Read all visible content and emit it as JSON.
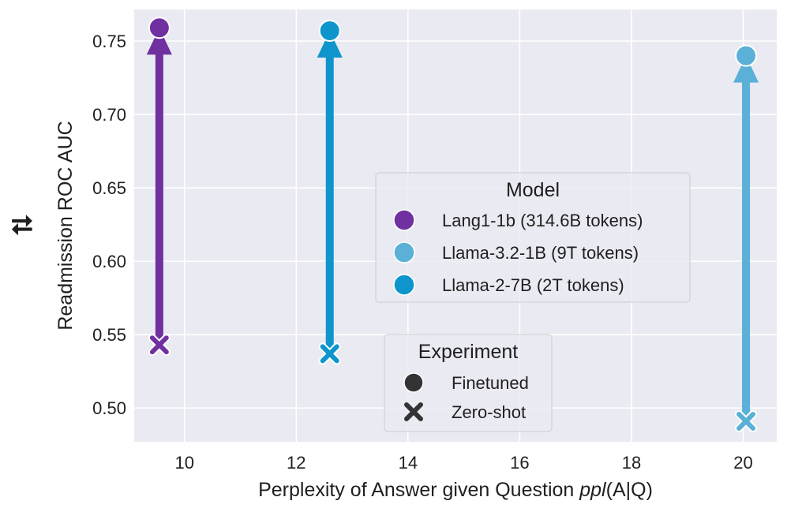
{
  "chart_data": {
    "type": "scatter",
    "title": "",
    "xlabel_prefix": "Perplexity of Answer given Question ",
    "xlabel_math": "ppl",
    "xlabel_math_args": "(A|Q)",
    "ylabel": "Readmission ROC AUC",
    "ylabel_marker": "⮁",
    "xlim": [
      9.1,
      20.6
    ],
    "ylim": [
      0.477,
      0.7715
    ],
    "xticks": [
      10,
      12,
      14,
      16,
      18,
      20
    ],
    "xtick_labels": [
      "10",
      "12",
      "14",
      "16",
      "18",
      "20"
    ],
    "yticks": [
      0.5,
      0.55,
      0.6,
      0.65,
      0.7,
      0.75
    ],
    "ytick_labels": [
      "0.50",
      "0.55",
      "0.60",
      "0.65",
      "0.70",
      "0.75"
    ],
    "grid": true,
    "series": [
      {
        "name": "Lang1-1b (314.6B tokens)",
        "color": "#7030a0",
        "x": 9.55,
        "zero_shot": 0.543,
        "finetuned": 0.759
      },
      {
        "name": "Llama-2-7B (2T tokens)",
        "color": "#0e95cc",
        "x": 12.6,
        "zero_shot": 0.537,
        "finetuned": 0.757
      },
      {
        "name": "Llama-3.2-1B (9T tokens)",
        "color": "#5ab0d6",
        "x": 20.05,
        "zero_shot": 0.491,
        "finetuned": 0.74
      }
    ],
    "legend_model": {
      "title": "Model",
      "position": "center-right",
      "entries": [
        {
          "label": "Lang1-1b (314.6B tokens)",
          "color": "#7030a0"
        },
        {
          "label": "Llama-3.2-1B (9T tokens)",
          "color": "#5ab0d6"
        },
        {
          "label": "Llama-2-7B (2T tokens)",
          "color": "#0e95cc"
        }
      ]
    },
    "legend_experiment": {
      "title": "Experiment",
      "position": "bottom-center",
      "entries": [
        {
          "label": "Finetuned",
          "marker": "circle"
        },
        {
          "label": "Zero-shot",
          "marker": "x"
        }
      ]
    }
  }
}
